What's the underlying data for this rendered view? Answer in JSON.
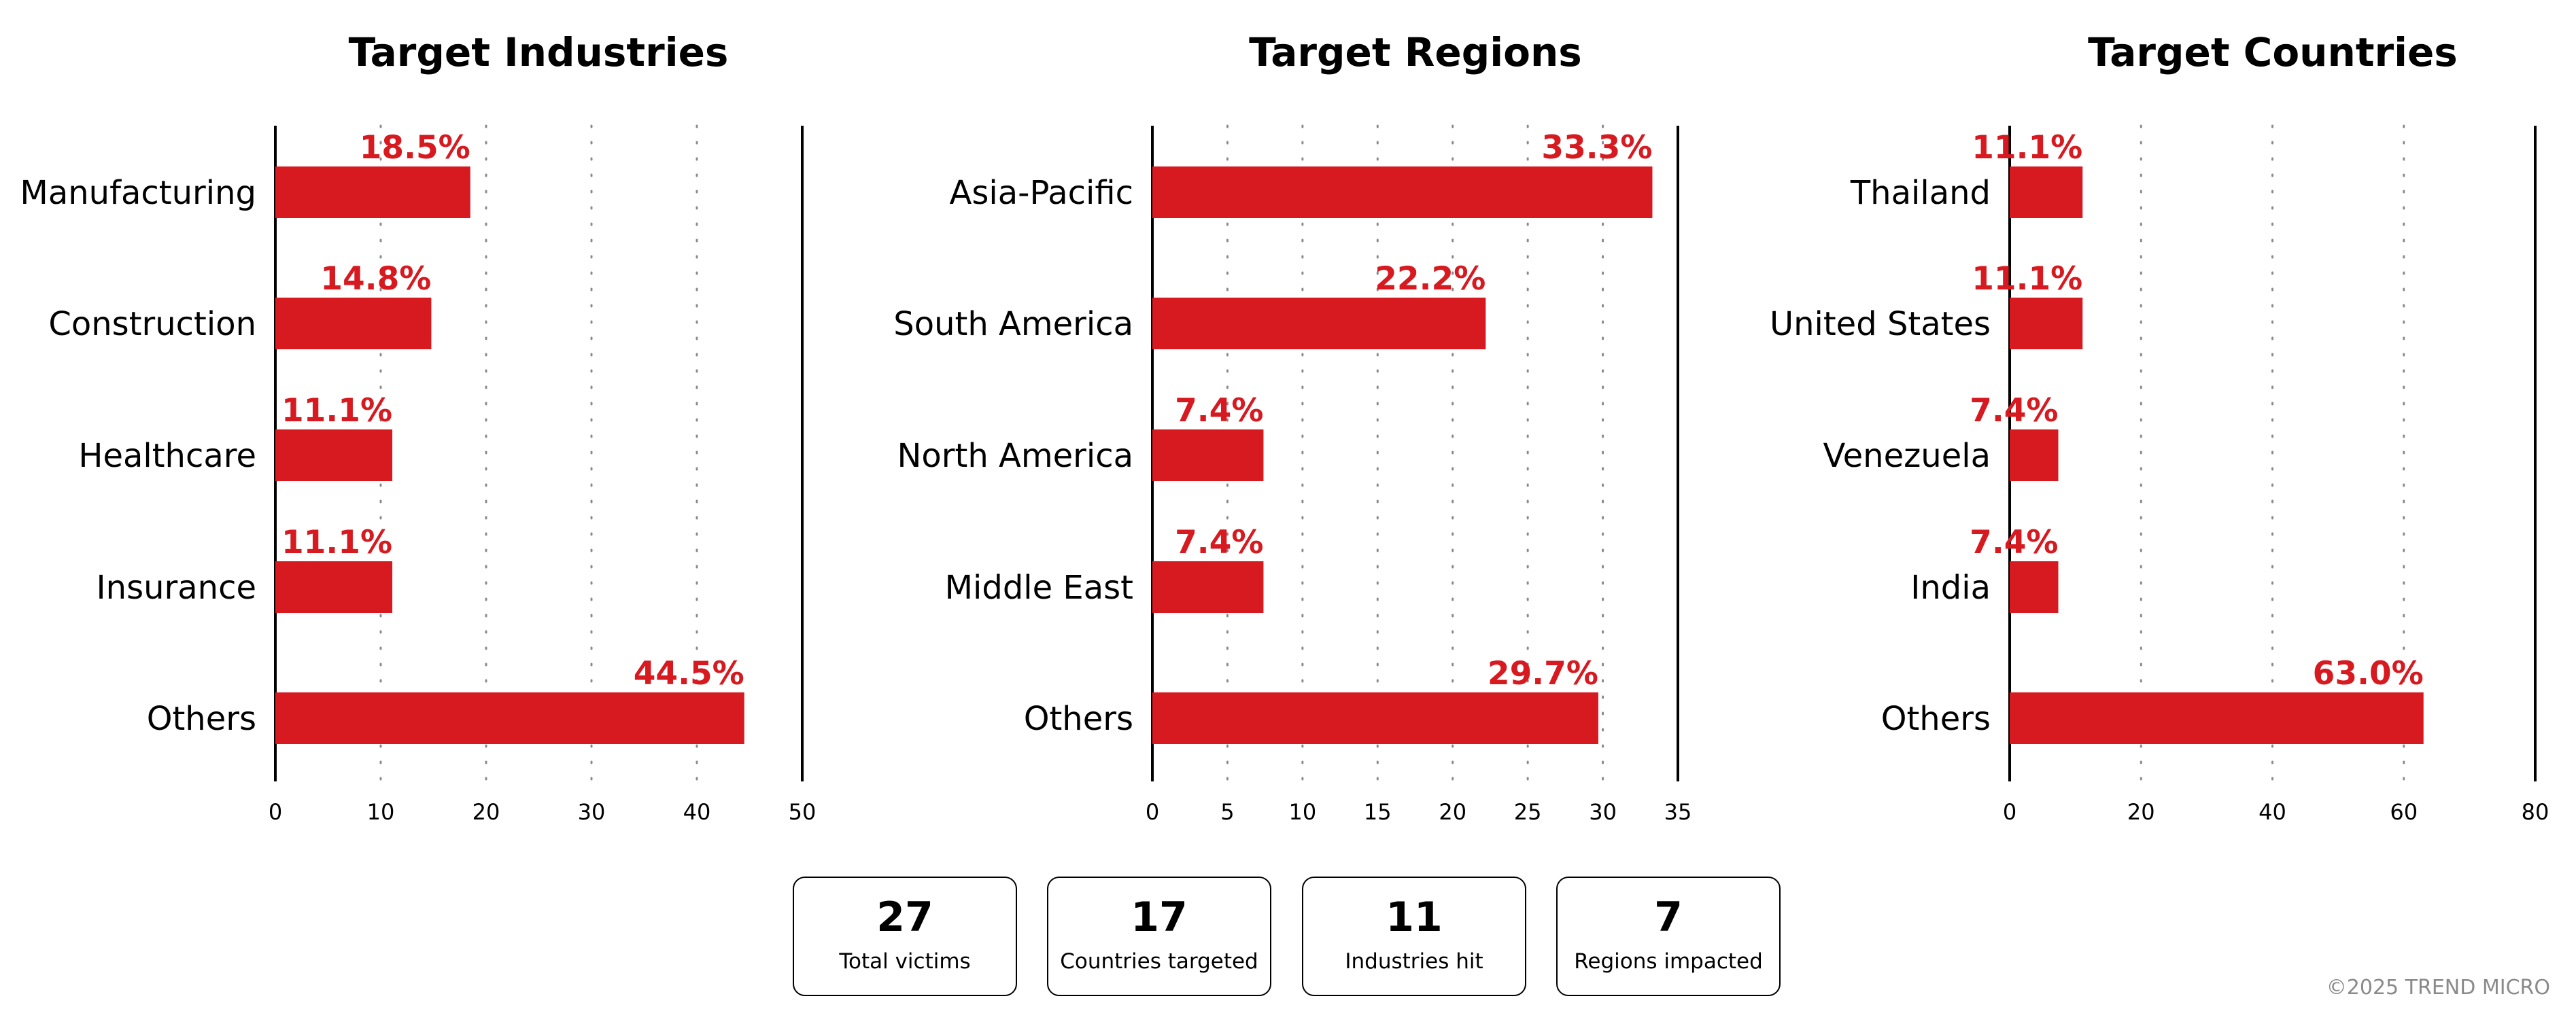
{
  "colors": {
    "bar": "#D71920",
    "label": "#D71920",
    "axis": "#000000",
    "grid": "#8a8a8a"
  },
  "chart_data": [
    {
      "type": "bar",
      "orientation": "horizontal",
      "title": "Target Industries",
      "categories": [
        "Manufacturing",
        "Construction",
        "Healthcare",
        "Insurance",
        "Others"
      ],
      "values": [
        18.5,
        14.8,
        11.1,
        11.1,
        44.5
      ],
      "value_labels": [
        "18.5%",
        "14.8%",
        "11.1%",
        "11.1%",
        "44.5%"
      ],
      "xlim": [
        0,
        50
      ],
      "xticks": [
        0,
        10,
        20,
        30,
        40,
        50
      ],
      "grid": "vertical dotted"
    },
    {
      "type": "bar",
      "orientation": "horizontal",
      "title": "Target Regions",
      "categories": [
        "Asia-Pacific",
        "South America",
        "North America",
        "Middle East",
        "Others"
      ],
      "values": [
        33.3,
        22.2,
        7.4,
        7.4,
        29.7
      ],
      "value_labels": [
        "33.3%",
        "22.2%",
        "7.4%",
        "7.4%",
        "29.7%"
      ],
      "xlim": [
        0,
        35
      ],
      "xticks": [
        0,
        5,
        10,
        15,
        20,
        25,
        30,
        35
      ],
      "grid": "vertical dotted"
    },
    {
      "type": "bar",
      "orientation": "horizontal",
      "title": "Target Countries",
      "categories": [
        "Thailand",
        "United States",
        "Venezuela",
        "India",
        "Others"
      ],
      "values": [
        11.1,
        11.1,
        7.4,
        7.4,
        63.0
      ],
      "value_labels": [
        "11.1%",
        "11.1%",
        "7.4%",
        "7.4%",
        "63.0%"
      ],
      "xlim": [
        0,
        80
      ],
      "xticks": [
        0,
        20,
        40,
        60,
        80
      ],
      "grid": "vertical dotted"
    }
  ],
  "stats": [
    {
      "value": "27",
      "label": "Total victims"
    },
    {
      "value": "17",
      "label": "Countries targeted"
    },
    {
      "value": "11",
      "label": "Industries hit"
    },
    {
      "value": "7",
      "label": "Regions impacted"
    }
  ],
  "copyright": "©2025 TREND MICRO"
}
